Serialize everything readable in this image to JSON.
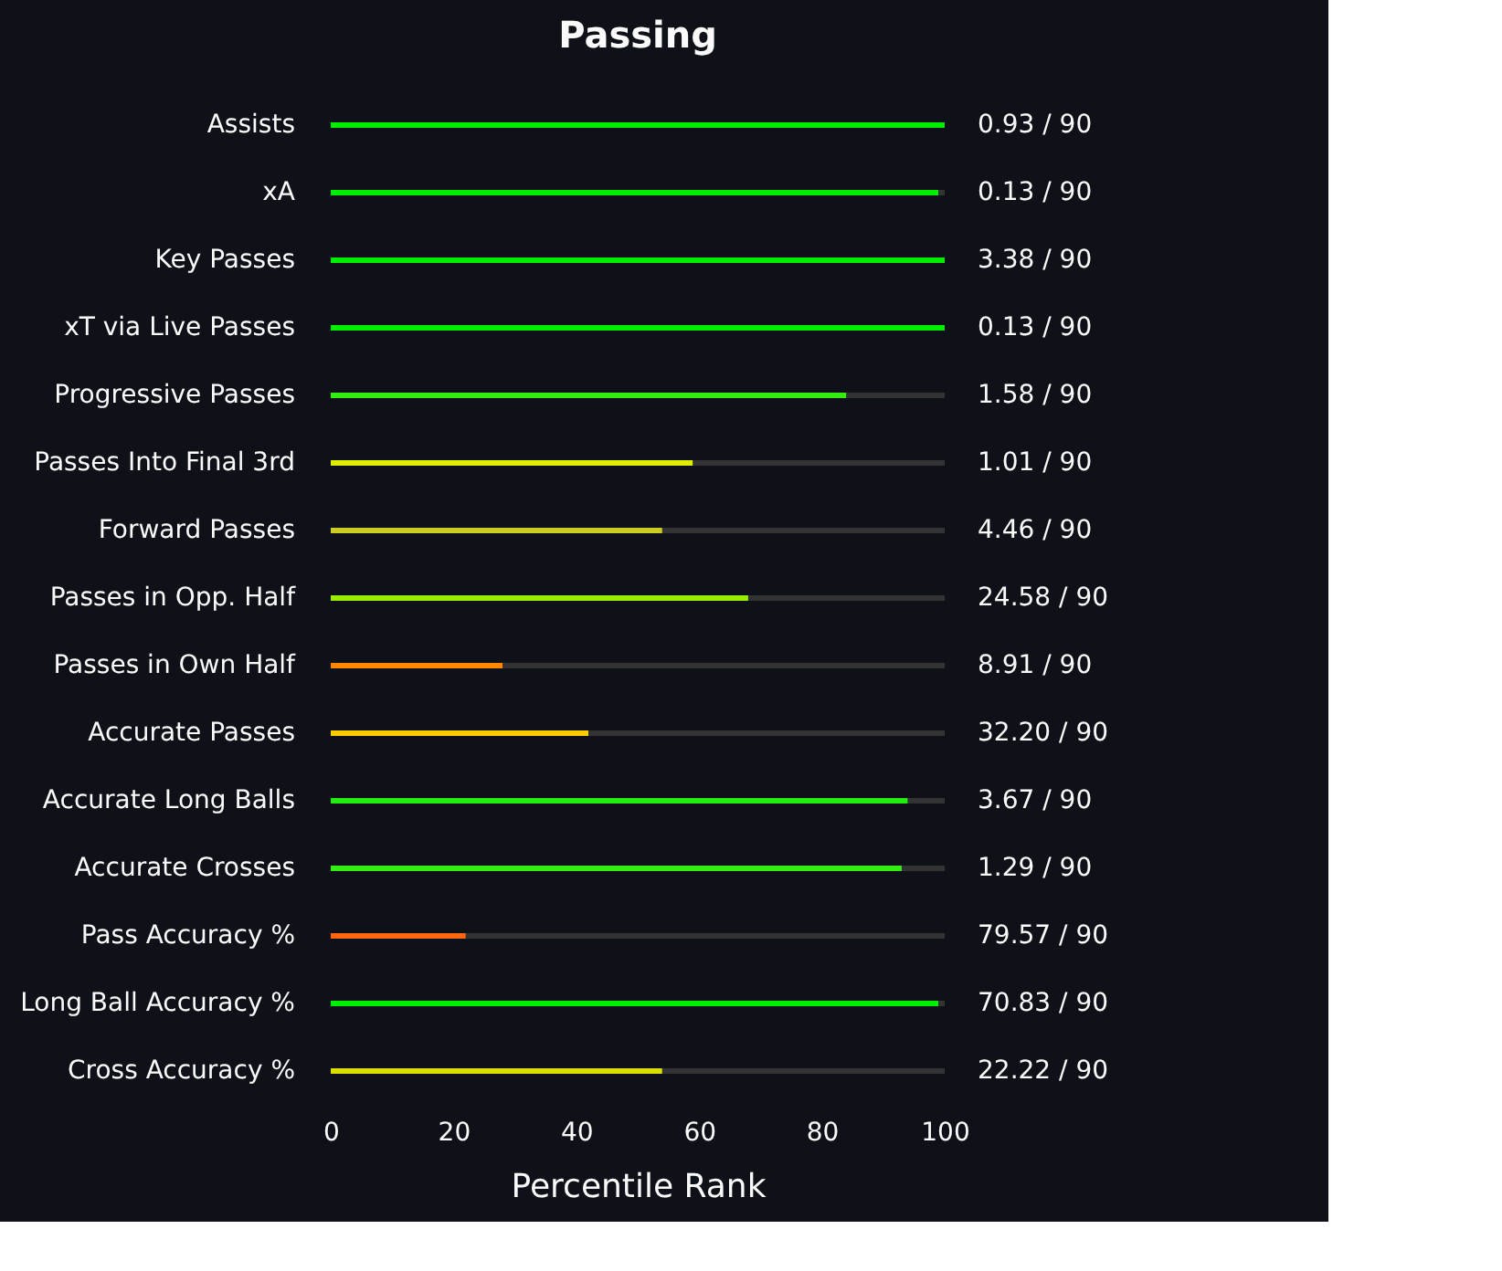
{
  "chart_data": {
    "type": "bar",
    "orientation": "horizontal",
    "stacked": true,
    "title": "Passing",
    "xlabel": "Percentile Rank",
    "categories": [
      "Assists",
      "xA",
      "Key Passes",
      "xT via Live Passes",
      "Progressive Passes",
      "Passes Into Final 3rd",
      "Forward Passes",
      "Passes in Opp. Half",
      "Passes in Own Half",
      "Accurate Passes",
      "Accurate Long Balls",
      "Accurate Crosses",
      "Pass Accuracy %",
      "Long Ball Accuracy %",
      "Cross Accuracy %"
    ],
    "series": [
      {
        "colors": [
          "#00ee00",
          "#00ee00",
          "#00ee00",
          "#00ee00",
          "#33ee11",
          "#ddee00",
          "#cccc22",
          "#99ee00",
          "#ff8800",
          "#ffcc00",
          "#22ee11",
          "#33ee11",
          "#ff6611",
          "#00ee00",
          "#dddd00"
        ],
        "values": [
          100,
          99,
          100,
          100,
          84,
          59,
          54,
          68,
          28,
          42,
          94,
          93,
          22,
          99,
          54
        ]
      },
      {
        "color": "#333333",
        "values": [
          0,
          1,
          0,
          0,
          16,
          41,
          46,
          32,
          72,
          58,
          6,
          7,
          78,
          1,
          46
        ]
      }
    ],
    "annotations": [
      "0.93 / 90",
      "0.13 / 90",
      "3.38 / 90",
      "0.13 / 90",
      "1.58 / 90",
      "1.01 / 90",
      "4.46 / 90",
      "24.58 / 90",
      "8.91 / 90",
      "32.20 / 90",
      "3.67 / 90",
      "1.29 / 90",
      "79.57 / 90",
      "70.83 / 90",
      "22.22 / 90"
    ],
    "xlim": [
      0,
      100
    ],
    "xticks": [
      0,
      20,
      40,
      60,
      80,
      100
    ]
  }
}
